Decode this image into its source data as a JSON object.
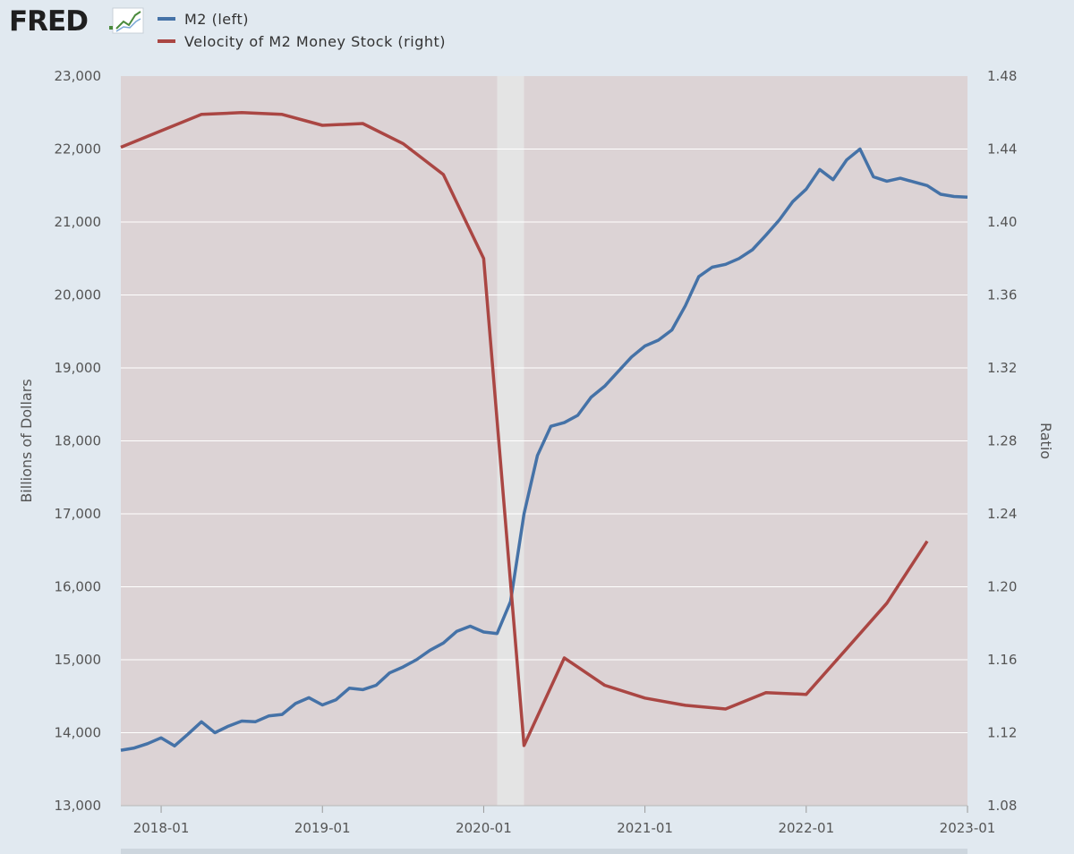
{
  "logo": {
    "text": "FRED",
    "icon": "fred-chart-icon"
  },
  "colors": {
    "page_background": "#e1e9f0",
    "recession_shading": "#dcd3d5",
    "recession_band": "#e4e4e4",
    "gridline": "#ffffff",
    "m2_series": "#4572a7",
    "velocity_series": "#aa4643"
  },
  "chart_data": {
    "type": "line",
    "x_ticks": [
      "2018-01",
      "2019-01",
      "2020-01",
      "2021-01",
      "2022-01",
      "2023-01"
    ],
    "xlim": [
      "2017-10",
      "2023-01"
    ],
    "grid": true,
    "legend_position": "top-left",
    "shaded_period": [
      "2020-02",
      "2020-04"
    ],
    "y_left": {
      "label": "Billions of Dollars",
      "ticks": [
        "13,000",
        "14,000",
        "15,000",
        "16,000",
        "17,000",
        "18,000",
        "19,000",
        "20,000",
        "21,000",
        "22,000",
        "23,000"
      ],
      "range": [
        13000,
        23000
      ]
    },
    "y_right": {
      "label": "Ratio",
      "ticks": [
        "1.08",
        "1.12",
        "1.16",
        "1.20",
        "1.24",
        "1.28",
        "1.32",
        "1.36",
        "1.40",
        "1.44",
        "1.48"
      ],
      "range": [
        1.08,
        1.48
      ]
    },
    "series": [
      {
        "name": "M2 (left)",
        "axis": "left",
        "x": [
          "2017-10",
          "2017-11",
          "2017-12",
          "2018-01",
          "2018-02",
          "2018-03",
          "2018-04",
          "2018-05",
          "2018-06",
          "2018-07",
          "2018-08",
          "2018-09",
          "2018-10",
          "2018-11",
          "2018-12",
          "2019-01",
          "2019-02",
          "2019-03",
          "2019-04",
          "2019-05",
          "2019-06",
          "2019-07",
          "2019-08",
          "2019-09",
          "2019-10",
          "2019-11",
          "2019-12",
          "2020-01",
          "2020-02",
          "2020-03",
          "2020-04",
          "2020-05",
          "2020-06",
          "2020-07",
          "2020-08",
          "2020-09",
          "2020-10",
          "2020-11",
          "2020-12",
          "2021-01",
          "2021-02",
          "2021-03",
          "2021-04",
          "2021-05",
          "2021-06",
          "2021-07",
          "2021-08",
          "2021-09",
          "2021-10",
          "2021-11",
          "2021-12",
          "2022-01",
          "2022-02",
          "2022-03",
          "2022-04",
          "2022-05",
          "2022-06",
          "2022-07",
          "2022-08",
          "2022-09",
          "2022-10",
          "2022-11",
          "2022-12",
          "2023-01"
        ],
        "values": [
          13760,
          13790,
          13850,
          13930,
          13820,
          13980,
          14150,
          14000,
          14090,
          14160,
          14150,
          14230,
          14250,
          14400,
          14480,
          14380,
          14450,
          14610,
          14590,
          14650,
          14820,
          14900,
          15000,
          15130,
          15230,
          15390,
          15460,
          15380,
          15360,
          15800,
          17000,
          17800,
          18200,
          18250,
          18350,
          18600,
          18750,
          18950,
          19150,
          19300,
          19380,
          19520,
          19850,
          20250,
          20380,
          20420,
          20500,
          20620,
          20820,
          21030,
          21280,
          21450,
          21720,
          21580,
          21850,
          22000,
          21620,
          21560,
          21600,
          21550,
          21500,
          21380,
          21350,
          21340
        ]
      },
      {
        "name": "Velocity of M2 Money Stock (right)",
        "axis": "right",
        "x": [
          "2017-10",
          "2018-01",
          "2018-04",
          "2018-07",
          "2018-10",
          "2019-01",
          "2019-04",
          "2019-07",
          "2019-10",
          "2020-01",
          "2020-04",
          "2020-07",
          "2020-10",
          "2021-01",
          "2021-04",
          "2021-07",
          "2021-10",
          "2022-01",
          "2022-04",
          "2022-07",
          "2022-10"
        ],
        "values": [
          1.441,
          1.45,
          1.459,
          1.46,
          1.459,
          1.453,
          1.454,
          1.443,
          1.426,
          1.38,
          1.113,
          1.161,
          1.146,
          1.139,
          1.135,
          1.133,
          1.142,
          1.141,
          1.166,
          1.191,
          1.225
        ]
      }
    ]
  }
}
